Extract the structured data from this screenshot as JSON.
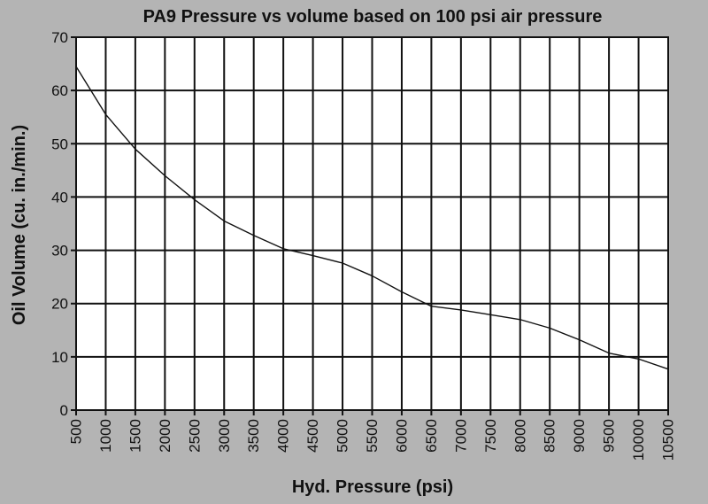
{
  "chart_data": {
    "type": "line",
    "title": "PA9 Pressure vs volume based on 100 psi air pressure",
    "xlabel": "Hyd. Pressure (psi)",
    "ylabel": "Oil Volume (cu. in./min.)",
    "xlim": [
      500,
      10500
    ],
    "ylim": [
      0,
      70
    ],
    "x_ticks": [
      500,
      1000,
      1500,
      2000,
      2500,
      3000,
      3500,
      4000,
      4500,
      5000,
      5500,
      6000,
      6500,
      7000,
      7500,
      8000,
      8500,
      9000,
      9500,
      10000,
      10500
    ],
    "x_tick_labels": [
      "500",
      "1000",
      "1500",
      "2000",
      "2500",
      "3000",
      "3500",
      "4000",
      "4500",
      "5000",
      "5500",
      "6000",
      "6500",
      "7000",
      "7500",
      "8000",
      "8500",
      "9000",
      "9500",
      "10000",
      "10500"
    ],
    "y_ticks": [
      0,
      10,
      20,
      30,
      40,
      50,
      60,
      70
    ],
    "y_tick_labels": [
      "0",
      "10",
      "20",
      "30",
      "40",
      "50",
      "60",
      "70"
    ],
    "grid": true,
    "series": [
      {
        "x": [
          500,
          1000,
          1500,
          2000,
          2500,
          3000,
          3500,
          4000,
          4500,
          5000,
          5500,
          6000,
          6500,
          7000,
          7500,
          8000,
          8500,
          9000,
          9500,
          10000,
          10500
        ],
        "values": [
          64.5,
          55.5,
          49,
          44,
          39.5,
          35.5,
          32.8,
          30.3,
          29,
          27.6,
          25.2,
          22.2,
          19.5,
          18.8,
          17.9,
          17,
          15.4,
          13.2,
          10.7,
          9.6,
          7.7
        ]
      }
    ],
    "colors": {
      "background": "#b4b4b4",
      "plot_area": "#ffffff",
      "line": "#111111",
      "grid": "#111111"
    }
  }
}
